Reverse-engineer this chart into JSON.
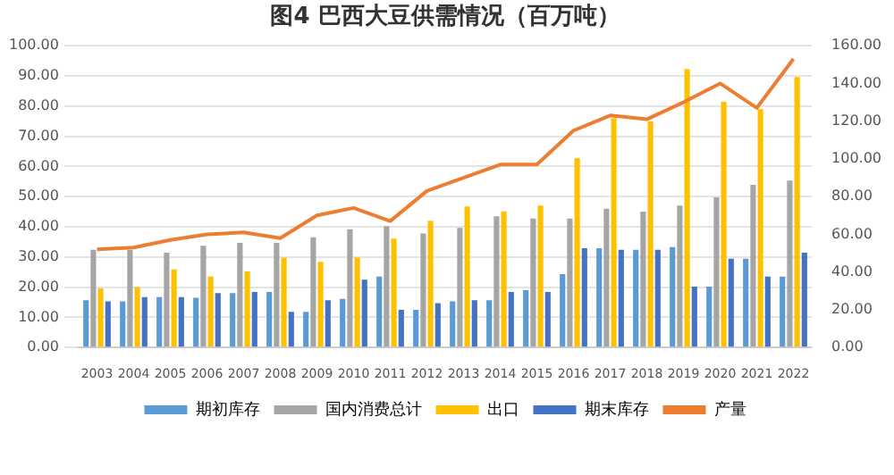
{
  "chart_data": {
    "type": "bar",
    "title": "图4 巴西大豆供需情况（百万吨）",
    "categories": [
      "2003",
      "2004",
      "2005",
      "2006",
      "2007",
      "2008",
      "2009",
      "2010",
      "2011",
      "2012",
      "2013",
      "2014",
      "2015",
      "2016",
      "2017",
      "2018",
      "2019",
      "2020",
      "2021",
      "2022"
    ],
    "series": [
      {
        "name": "期初库存",
        "color": "#5b9bd5",
        "values": [
          15.7,
          15.3,
          16.7,
          16.5,
          18.0,
          18.4,
          11.8,
          16.1,
          23.5,
          12.5,
          15.3,
          15.7,
          19.0,
          24.3,
          32.9,
          32.4,
          33.3,
          20.2,
          29.4,
          23.5
        ]
      },
      {
        "name": "国内消费总计",
        "color": "#a5a5a5",
        "values": [
          32.4,
          32.4,
          31.4,
          33.7,
          34.7,
          34.7,
          36.5,
          39.2,
          40.2,
          37.8,
          39.6,
          43.5,
          42.7,
          42.7,
          46.0,
          45.0,
          47.0,
          49.8,
          53.9,
          55.3
        ]
      },
      {
        "name": "出口",
        "color": "#ffc000",
        "values": [
          19.6,
          20.0,
          25.9,
          23.5,
          25.3,
          29.8,
          28.4,
          29.8,
          36.1,
          42.0,
          46.7,
          45.1,
          47.0,
          62.7,
          76.0,
          74.9,
          92.2,
          81.4,
          79.0,
          89.6
        ]
      },
      {
        "name": "期末库存",
        "color": "#4472c4",
        "values": [
          15.3,
          16.7,
          16.7,
          18.0,
          18.4,
          11.8,
          15.7,
          22.5,
          12.5,
          14.7,
          15.7,
          18.4,
          18.4,
          32.9,
          32.4,
          32.4,
          20.2,
          29.4,
          23.5,
          31.4
        ]
      },
      {
        "name": "产量",
        "color": "#ed7d31",
        "type": "line",
        "axis": "y2",
        "values": [
          52,
          53,
          57,
          60,
          61,
          58,
          70,
          74,
          67,
          83,
          90,
          97,
          97,
          115,
          123,
          121,
          130,
          140,
          127,
          153
        ]
      }
    ],
    "ylim": [
      0,
      100
    ],
    "yticks": [
      {
        "value": 0,
        "label": "0.00"
      },
      {
        "value": 10,
        "label": "10.00"
      },
      {
        "value": 20,
        "label": "20.00"
      },
      {
        "value": 30,
        "label": "30.00"
      },
      {
        "value": 40,
        "label": "40.00"
      },
      {
        "value": 50,
        "label": "50.00"
      },
      {
        "value": 60,
        "label": "60.00"
      },
      {
        "value": 70,
        "label": "70.00"
      },
      {
        "value": 80,
        "label": "80.00"
      },
      {
        "value": 90,
        "label": "90.00"
      },
      {
        "value": 100,
        "label": "100.00"
      }
    ],
    "y2lim": [
      0,
      160
    ],
    "y2ticks": [
      {
        "value": 0,
        "label": "0.00"
      },
      {
        "value": 20,
        "label": "20.00"
      },
      {
        "value": 40,
        "label": "40.00"
      },
      {
        "value": 60,
        "label": "60.00"
      },
      {
        "value": 80,
        "label": "80.00"
      },
      {
        "value": 100,
        "label": "100.00"
      },
      {
        "value": 120,
        "label": "120.00"
      },
      {
        "value": 140,
        "label": "140.00"
      },
      {
        "value": 160,
        "label": "160.00"
      }
    ],
    "grid": "y",
    "legend": "bottom",
    "marker": "none"
  }
}
